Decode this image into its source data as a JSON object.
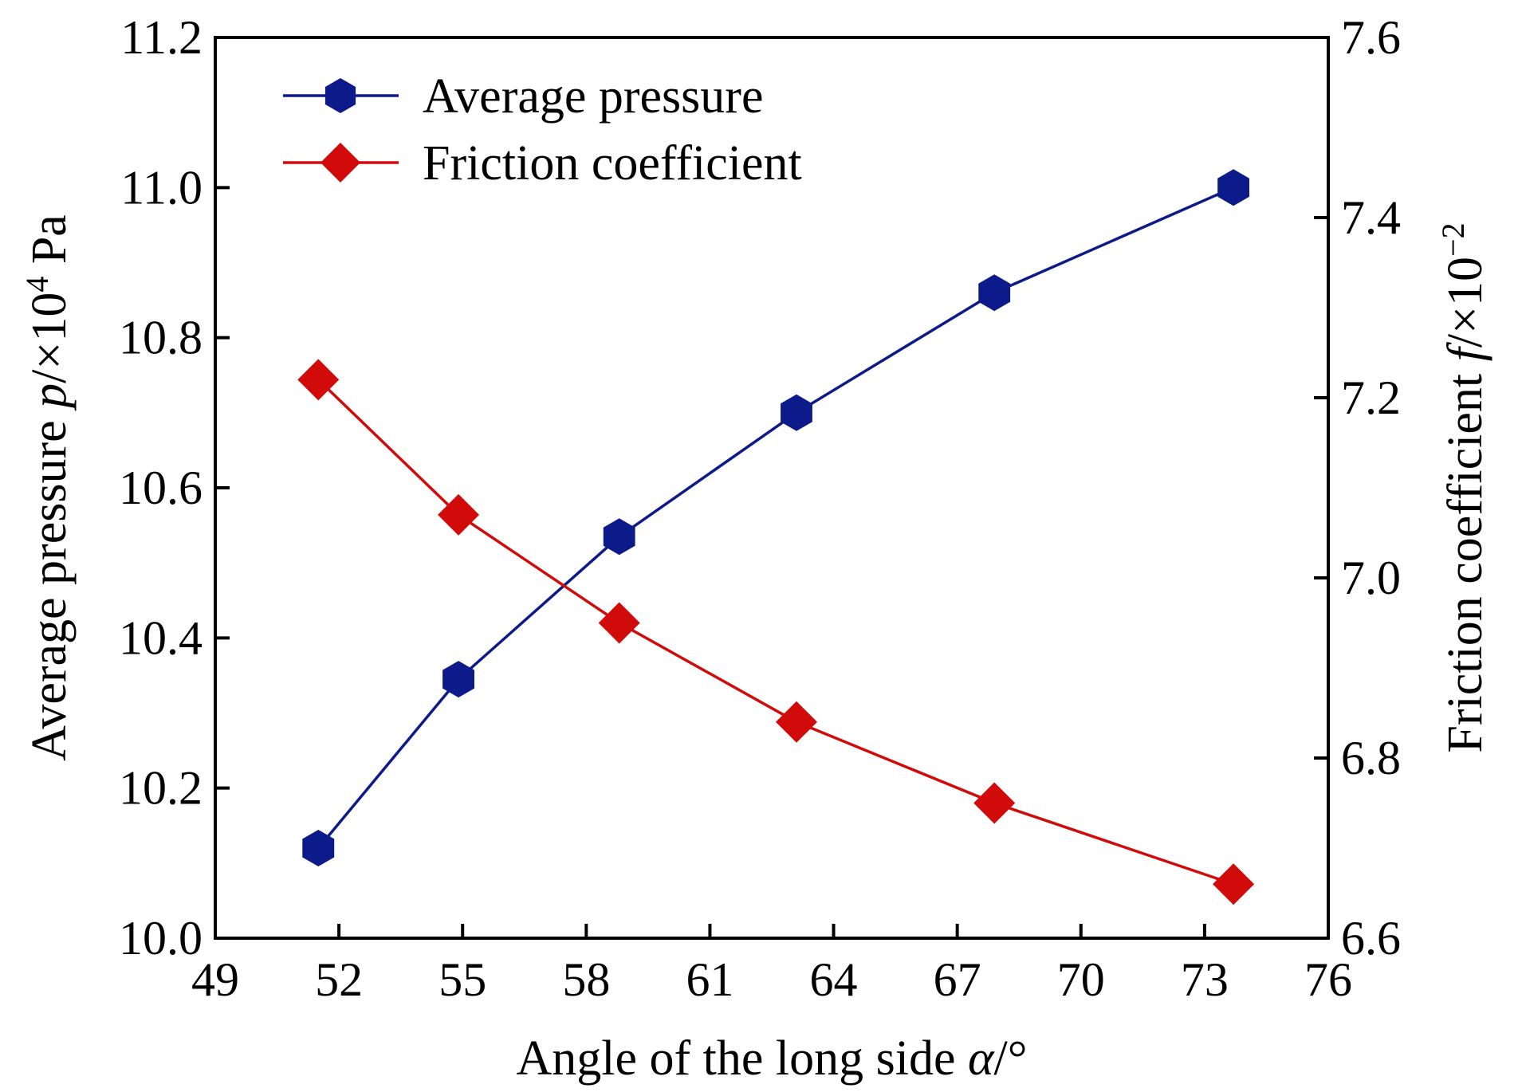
{
  "chart_data": {
    "type": "line",
    "title": "",
    "xlabel": {
      "main": "Angle of the long side ",
      "var": "α",
      "unit": "/°"
    },
    "ylabel_left": {
      "main": "Average pressure ",
      "var": "p",
      "unit": "/×10",
      "exp": "4",
      "tail": " Pa"
    },
    "ylabel_right": {
      "main": "Friction coefficient ",
      "var": "f",
      "unit": "/×10",
      "exp": "−2"
    },
    "xlim": [
      49,
      76
    ],
    "ylim_left": [
      10.0,
      11.2
    ],
    "ylim_right": [
      6.6,
      7.6
    ],
    "x_ticks": [
      49,
      52,
      55,
      58,
      61,
      64,
      67,
      70,
      73,
      76
    ],
    "x_tick_labels": [
      "49",
      "52",
      "55",
      "58",
      "61",
      "64",
      "67",
      "70",
      "73",
      "76"
    ],
    "y_left_ticks": [
      10.0,
      10.2,
      10.4,
      10.6,
      10.8,
      11.0,
      11.2
    ],
    "y_left_tick_labels": [
      "10.0",
      "10.2",
      "10.4",
      "10.6",
      "10.8",
      "11.0",
      "11.2"
    ],
    "y_right_ticks": [
      6.6,
      6.8,
      7.0,
      7.2,
      7.4,
      7.6
    ],
    "y_right_tick_labels": [
      "6.6",
      "6.8",
      "7.0",
      "7.2",
      "7.4",
      "7.6"
    ],
    "legend_position": "top-left",
    "grid": false,
    "series": [
      {
        "name": "Average pressure",
        "axis": "left",
        "color": "#0d1a8a",
        "marker": "hexagon",
        "x": [
          51.5,
          54.9,
          58.8,
          63.1,
          67.9,
          73.7
        ],
        "values": [
          10.12,
          10.345,
          10.535,
          10.7,
          10.86,
          11.0
        ]
      },
      {
        "name": "Friction coefficient",
        "axis": "right",
        "color": "#d10a0a",
        "marker": "diamond",
        "x": [
          51.5,
          54.9,
          58.8,
          63.1,
          67.9,
          73.7
        ],
        "values": [
          7.22,
          7.07,
          6.95,
          6.84,
          6.75,
          6.66
        ]
      }
    ]
  }
}
